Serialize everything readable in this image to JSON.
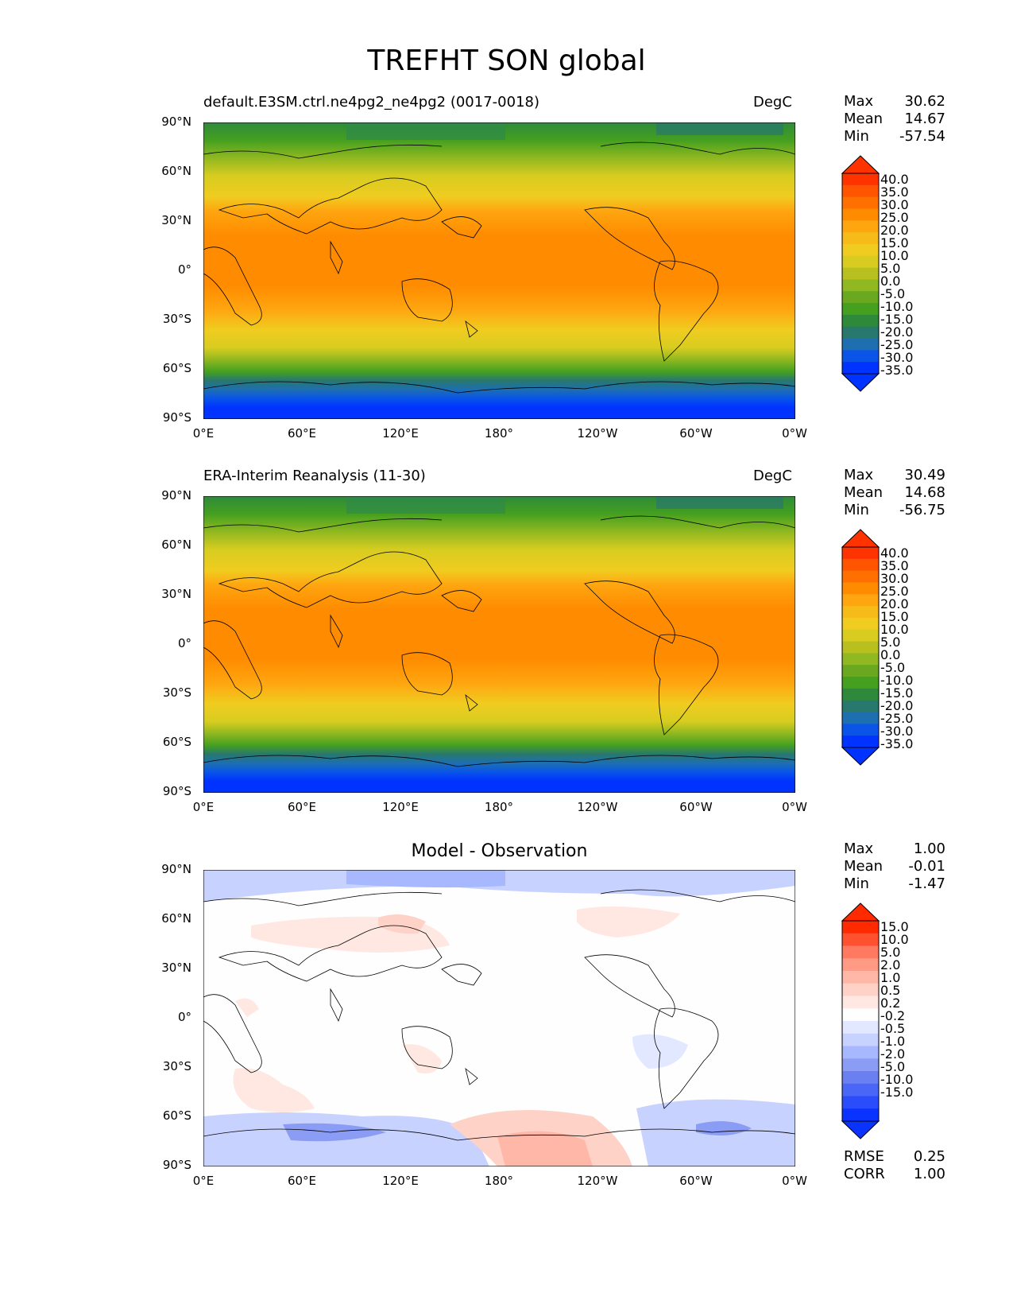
{
  "figure": {
    "title": "TREFHT SON global"
  },
  "axes": {
    "lat_ticks": [
      "90°N",
      "60°N",
      "30°N",
      "0°",
      "30°S",
      "60°S",
      "90°S"
    ],
    "lon_ticks": [
      "0°E",
      "60°E",
      "120°E",
      "180°",
      "120°W",
      "60°W",
      "0°W"
    ]
  },
  "panels": [
    {
      "title_left": "default.E3SM.ctrl.ne4pg2_ne4pg2 (0017-0018)",
      "title_right": "DegC",
      "stats": {
        "max_label": "Max",
        "max": "30.62",
        "mean_label": "Mean",
        "mean": "14.67",
        "min_label": "Min",
        "min": "-57.54"
      },
      "colorbar": [
        "40.0",
        "35.0",
        "30.0",
        "25.0",
        "20.0",
        "15.0",
        "10.0",
        "5.0",
        "0.0",
        "-5.0",
        "-10.0",
        "-15.0",
        "-20.0",
        "-25.0",
        "-30.0",
        "-35.0"
      ]
    },
    {
      "title_left": "ERA-Interim Reanalysis (11-30)",
      "title_right": "DegC",
      "stats": {
        "max_label": "Max",
        "max": "30.49",
        "mean_label": "Mean",
        "mean": "14.68",
        "min_label": "Min",
        "min": "-56.75"
      },
      "colorbar": [
        "40.0",
        "35.0",
        "30.0",
        "25.0",
        "20.0",
        "15.0",
        "10.0",
        "5.0",
        "0.0",
        "-5.0",
        "-10.0",
        "-15.0",
        "-20.0",
        "-25.0",
        "-30.0",
        "-35.0"
      ]
    },
    {
      "title_center": "Model - Observation",
      "stats": {
        "max_label": "Max",
        "max": "1.00",
        "mean_label": "Mean",
        "mean": "-0.01",
        "min_label": "Min",
        "min": "-1.47"
      },
      "colorbar": [
        "15.0",
        "10.0",
        "5.0",
        "2.0",
        "1.0",
        "0.5",
        "0.2",
        "-0.2",
        "-0.5",
        "-1.0",
        "-2.0",
        "-5.0",
        "-10.0",
        "-15.0"
      ],
      "metrics": {
        "rmse_label": "RMSE",
        "rmse": "0.25",
        "corr_label": "CORR",
        "corr": "1.00"
      }
    }
  ],
  "colors": {
    "abs_scale": [
      "#ff3300",
      "#ff5500",
      "#ff7000",
      "#ff8c00",
      "#ffa510",
      "#f6bb18",
      "#f0cc20",
      "#d8cc20",
      "#b8c020",
      "#90b820",
      "#6aa820",
      "#45a020",
      "#2e8a3a",
      "#28786e",
      "#1e6fb0",
      "#0a55e8",
      "#0033ff"
    ],
    "diff_scale": [
      "#ff2a00",
      "#ff5030",
      "#ff7a60",
      "#ff9a85",
      "#ffb8a8",
      "#ffd2c8",
      "#ffe8e2",
      "#fefefe",
      "#e2e8ff",
      "#c8d2ff",
      "#a8b8ff",
      "#8a9cf4",
      "#6a80f0",
      "#4a66f6",
      "#2a4cfa",
      "#0a33ff"
    ]
  }
}
